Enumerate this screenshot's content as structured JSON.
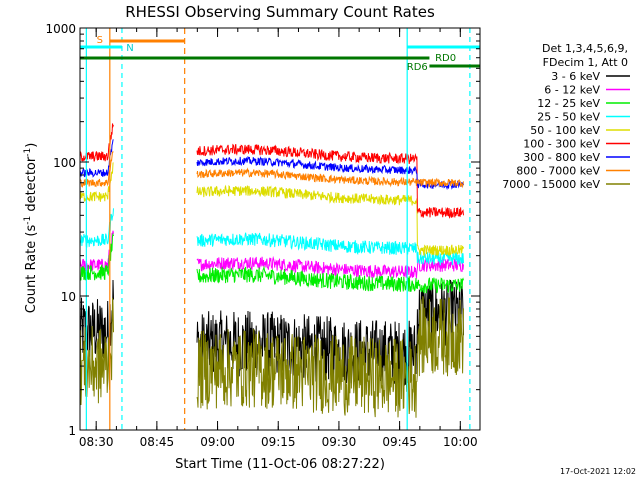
{
  "chart_data": {
    "type": "line",
    "title": "RHESSI Observing Summary Count Rates",
    "xlabel": "Start Time (11-Oct-06 08:27:22)",
    "ylabel_main": "Count Rate (s",
    "ylabel_sup1": "-1",
    "ylabel_mid": " detector",
    "ylabel_sup2": "-1",
    "ylabel_end": ")",
    "x_unit": "minutes after 08:27:22 UT",
    "xlim": [
      -1.37,
      97.5
    ],
    "ylim": [
      1,
      1000
    ],
    "y_scale": "log",
    "x_ticks": [
      {
        "label": "08:30",
        "x": 2.63
      },
      {
        "label": "08:45",
        "x": 17.63
      },
      {
        "label": "09:00",
        "x": 32.63
      },
      {
        "label": "09:15",
        "x": 47.63
      },
      {
        "label": "09:30",
        "x": 62.63
      },
      {
        "label": "09:45",
        "x": 77.63
      },
      {
        "label": "10:00",
        "x": 92.63
      }
    ],
    "x_minor_step": 5,
    "y_ticks": [
      {
        "label": "1",
        "y": 1
      },
      {
        "label": "10",
        "y": 10
      },
      {
        "label": "100",
        "y": 100
      },
      {
        "label": "1000",
        "y": 1000
      }
    ],
    "legend": {
      "placement": "right",
      "header": [
        "Det 1,3,4,5,6,9,",
        "FDecim 1, Att 0"
      ]
    },
    "series": [
      {
        "name": "3 - 6 keV",
        "color": "#000000",
        "before": 5.5,
        "after": 4.0,
        "late": 7.5,
        "noise": 0.25
      },
      {
        "name": "6 - 12 keV",
        "color": "#ff00ff",
        "before": 17,
        "after": 16,
        "late": 17,
        "noise": 0.05
      },
      {
        "name": "12 - 25 keV",
        "color": "#00ee00",
        "before": 15,
        "after": 13,
        "late": 12,
        "noise": 0.06
      },
      {
        "name": "25 - 50 keV",
        "color": "#00ffff",
        "before": 26,
        "after": 24,
        "late": 19,
        "noise": 0.05
      },
      {
        "name": "50 - 100 keV",
        "color": "#dddd00",
        "before": 55,
        "after": 55,
        "late": 22,
        "noise": 0.04
      },
      {
        "name": "100 - 300 keV",
        "color": "#ff0000",
        "before": 110,
        "after": 112,
        "late": 42,
        "noise": 0.04
      },
      {
        "name": "300 - 800 keV",
        "color": "#0000ff",
        "before": 83,
        "after": 92,
        "late": 68,
        "noise": 0.03
      },
      {
        "name": "800 - 7000 keV",
        "color": "#ff8000",
        "before": 70,
        "after": 75,
        "late": 70,
        "noise": 0.03
      },
      {
        "name": "7000 - 15000 keV",
        "color": "#808000",
        "before": 3.0,
        "after": 2.6,
        "late": 5.0,
        "noise": 0.3
      }
    ],
    "annotations": {
      "saa_label": "S",
      "night_label": "N",
      "rd0_label": "RD0",
      "rd6_label": "RD6"
    },
    "datagaps": [
      {
        "from": 18.5,
        "to": 27.5
      }
    ],
    "timestamp": "17-Oct-2021 12:02"
  }
}
